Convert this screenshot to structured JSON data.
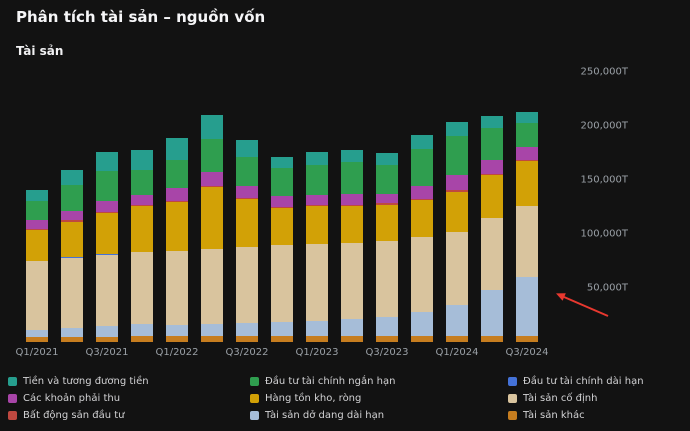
{
  "page": {
    "title": "Phân tích tài sản – nguồn vốn"
  },
  "colors": {
    "background": "#121212",
    "title_text": "#f5f5f7",
    "axis_text": "#9aa0a6",
    "annotation_arrow": "#e8382f"
  },
  "chart_data": {
    "type": "bar",
    "stacked": true,
    "title": "Tài sản",
    "unit": "T",
    "ylim": [
      0,
      250000
    ],
    "grid": false,
    "legend_position": "bottom",
    "categories": [
      "Q1/2021",
      "Q2/2021",
      "Q3/2021",
      "Q4/2021",
      "Q1/2022",
      "Q2/2022",
      "Q3/2022",
      "Q4/2022",
      "Q1/2023",
      "Q2/2023",
      "Q3/2023",
      "Q4/2023",
      "Q1/2024",
      "Q2/2024",
      "Q3/2024"
    ],
    "x_tick_labels": [
      "Q1/2021",
      "Q3/2021",
      "Q1/2022",
      "Q3/2022",
      "Q1/2023",
      "Q3/2023",
      "Q1/2024",
      "Q3/2024"
    ],
    "y_ticks": [
      "250,000T",
      "200,000T",
      "150,000T",
      "100,000T",
      "50,000T"
    ],
    "series": [
      {
        "name": "Tài sản khác",
        "color": "#c67d1f",
        "values": [
          5000,
          5000,
          5000,
          5500,
          6000,
          6000,
          6000,
          5500,
          5500,
          5500,
          5500,
          6000,
          6000,
          6000,
          6000
        ]
      },
      {
        "name": "Tài sản dở dang dài hạn",
        "color": "#a6bdd8",
        "values": [
          6000,
          8000,
          10000,
          11000,
          10000,
          11000,
          12000,
          13000,
          14000,
          16000,
          18000,
          22000,
          28000,
          42000,
          54000
        ]
      },
      {
        "name": "Tài sản cố định",
        "color": "#d9c49e",
        "values": [
          64000,
          65000,
          66000,
          67000,
          68000,
          69000,
          70000,
          71000,
          71000,
          70000,
          70000,
          69000,
          68000,
          67000,
          66000
        ]
      },
      {
        "name": "Đầu tư tài chính dài hạn",
        "color": "#4472d8",
        "values": [
          300,
          300,
          300,
          300,
          300,
          300,
          300,
          300,
          300,
          300,
          300,
          300,
          300,
          300,
          300
        ]
      },
      {
        "name": "Hàng tồn kho, ròng",
        "color": "#d2a106",
        "values": [
          28000,
          33000,
          38000,
          42000,
          45000,
          57000,
          44000,
          34000,
          35000,
          34000,
          33000,
          34000,
          37000,
          39000,
          41000
        ]
      },
      {
        "name": "Bất động sản đầu tư",
        "color": "#bf4840",
        "values": [
          1500,
          1500,
          1500,
          1500,
          1500,
          1500,
          1500,
          1500,
          1500,
          1500,
          1500,
          1500,
          1500,
          1500,
          1500
        ]
      },
      {
        "name": "Các khoản phải thu",
        "color": "#a845a8",
        "values": [
          8000,
          9000,
          10000,
          9000,
          12000,
          13000,
          11000,
          10000,
          9000,
          10000,
          9000,
          12000,
          14000,
          13000,
          12000
        ]
      },
      {
        "name": "Đầu tư tài chính ngắn hạn",
        "color": "#2f9e4f",
        "values": [
          18000,
          24000,
          28000,
          23000,
          26000,
          30000,
          27000,
          26000,
          28000,
          29000,
          27000,
          34000,
          36000,
          29000,
          22000
        ]
      },
      {
        "name": "Tiền và tương đương tiền",
        "color": "#269e8e",
        "values": [
          10200,
          13200,
          17200,
          18700,
          20200,
          22200,
          15200,
          9700,
          11700,
          11700,
          10700,
          13200,
          13200,
          11200,
          10200
        ]
      }
    ],
    "legend_items": [
      "Tiền và tương đương tiền",
      "Các khoản phải thu",
      "Bất động sản đầu tư",
      "Đầu tư tài chính ngắn hạn",
      "Hàng tồn kho, ròng",
      "Tài sản dở dang dài hạn",
      "Đầu tư tài chính dài hạn",
      "Tài sản cố định",
      "Tài sản khác"
    ],
    "annotation": {
      "type": "arrow",
      "color": "#e8382f",
      "points_at": "Q3/2024"
    }
  }
}
